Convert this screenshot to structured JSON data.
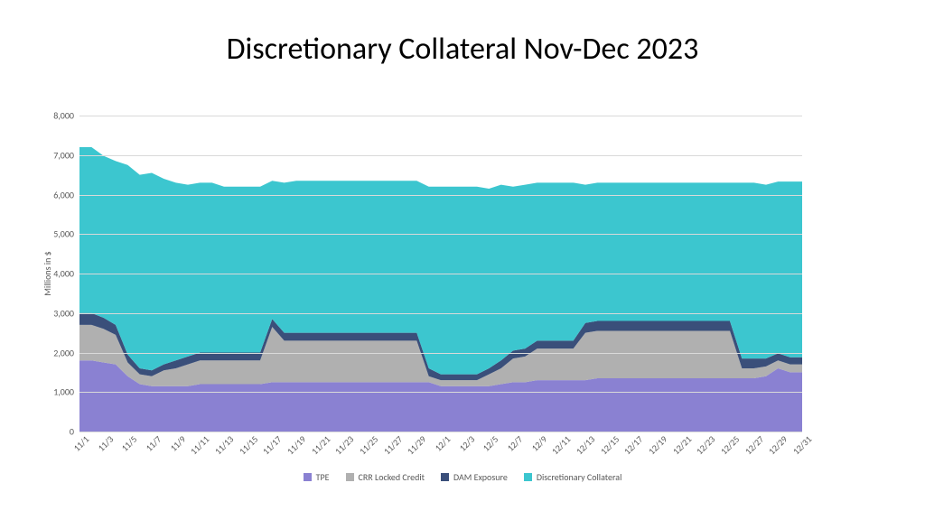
{
  "title": "Discretionary Collateral Nov-Dec 2023",
  "title_fontsize": 34,
  "title_color": "#000000",
  "chart": {
    "type": "area",
    "background_color": "#ffffff",
    "grid_color": "#d9d9d9",
    "ylabel": "Millions in $",
    "ylabel_fontsize": 10,
    "ytick_fontsize": 10,
    "xtick_fontsize": 10,
    "legend_fontsize": 10,
    "ylim": [
      0,
      8000
    ],
    "yticks": [
      0,
      1000,
      2000,
      3000,
      4000,
      5000,
      6000,
      7000,
      8000
    ],
    "ytick_labels": [
      "0",
      "1,000",
      "2,000",
      "3,000",
      "4,000",
      "5,000",
      "6,000",
      "7,000",
      "8,000"
    ],
    "categories": [
      "11/1",
      "11/2",
      "11/3",
      "11/4",
      "11/5",
      "11/6",
      "11/7",
      "11/8",
      "11/9",
      "11/10",
      "11/11",
      "11/12",
      "11/13",
      "11/14",
      "11/15",
      "11/16",
      "11/17",
      "11/18",
      "11/19",
      "11/20",
      "11/21",
      "11/22",
      "11/23",
      "11/24",
      "11/25",
      "11/26",
      "11/27",
      "11/28",
      "11/29",
      "11/30",
      "12/1",
      "12/2",
      "12/3",
      "12/4",
      "12/5",
      "12/6",
      "12/7",
      "12/8",
      "12/9",
      "12/10",
      "12/11",
      "12/12",
      "12/13",
      "12/14",
      "12/15",
      "12/16",
      "12/17",
      "12/18",
      "12/19",
      "12/20",
      "12/21",
      "12/22",
      "12/23",
      "12/24",
      "12/25",
      "12/26",
      "12/27",
      "12/28",
      "12/29",
      "12/30",
      "12/31"
    ],
    "xticks_every": 2,
    "series": [
      {
        "name": "TPE",
        "color": "#8a81d2",
        "values": [
          1800,
          1800,
          1750,
          1700,
          1400,
          1200,
          1150,
          1150,
          1150,
          1150,
          1200,
          1200,
          1200,
          1200,
          1200,
          1200,
          1250,
          1250,
          1250,
          1250,
          1250,
          1250,
          1250,
          1250,
          1250,
          1250,
          1250,
          1250,
          1250,
          1250,
          1150,
          1150,
          1150,
          1150,
          1150,
          1200,
          1250,
          1250,
          1300,
          1300,
          1300,
          1300,
          1300,
          1350,
          1350,
          1350,
          1350,
          1350,
          1350,
          1350,
          1350,
          1350,
          1350,
          1350,
          1350,
          1350,
          1350,
          1400,
          1600,
          1500,
          1500
        ]
      },
      {
        "name": "CRR Locked Credit",
        "color": "#b0b0b0",
        "values": [
          900,
          900,
          850,
          750,
          350,
          250,
          250,
          400,
          450,
          550,
          600,
          600,
          600,
          600,
          600,
          600,
          1400,
          1050,
          1050,
          1050,
          1050,
          1050,
          1050,
          1050,
          1050,
          1050,
          1050,
          1050,
          1050,
          150,
          150,
          150,
          150,
          150,
          300,
          400,
          600,
          650,
          800,
          800,
          800,
          800,
          1200,
          1200,
          1200,
          1200,
          1200,
          1200,
          1200,
          1200,
          1200,
          1200,
          1200,
          1200,
          1200,
          250,
          250,
          250,
          200,
          200,
          200
        ]
      },
      {
        "name": "DAM Exposure",
        "color": "#3a4f7a",
        "values": [
          300,
          300,
          280,
          250,
          200,
          150,
          150,
          150,
          200,
          200,
          200,
          200,
          200,
          200,
          200,
          200,
          200,
          200,
          200,
          200,
          200,
          200,
          200,
          200,
          200,
          200,
          200,
          200,
          200,
          200,
          150,
          150,
          150,
          150,
          150,
          200,
          200,
          200,
          200,
          200,
          200,
          200,
          250,
          250,
          250,
          250,
          250,
          250,
          250,
          250,
          250,
          250,
          250,
          250,
          250,
          250,
          250,
          200,
          180,
          180,
          180
        ]
      },
      {
        "name": "Discretionary Collateral",
        "color": "#3cc6cf",
        "values": [
          4200,
          4200,
          4100,
          4150,
          4800,
          4900,
          5000,
          4700,
          4500,
          4350,
          4300,
          4300,
          4200,
          4200,
          4200,
          4200,
          3500,
          3800,
          3850,
          3850,
          3850,
          3850,
          3850,
          3850,
          3850,
          3850,
          3850,
          3850,
          3850,
          4600,
          4750,
          4750,
          4750,
          4750,
          4550,
          4450,
          4150,
          4150,
          4000,
          4000,
          4000,
          4000,
          3500,
          3500,
          3500,
          3500,
          3500,
          3500,
          3500,
          3500,
          3500,
          3500,
          3500,
          3500,
          3500,
          4450,
          4450,
          4400,
          4350,
          4450,
          4450
        ]
      }
    ]
  }
}
